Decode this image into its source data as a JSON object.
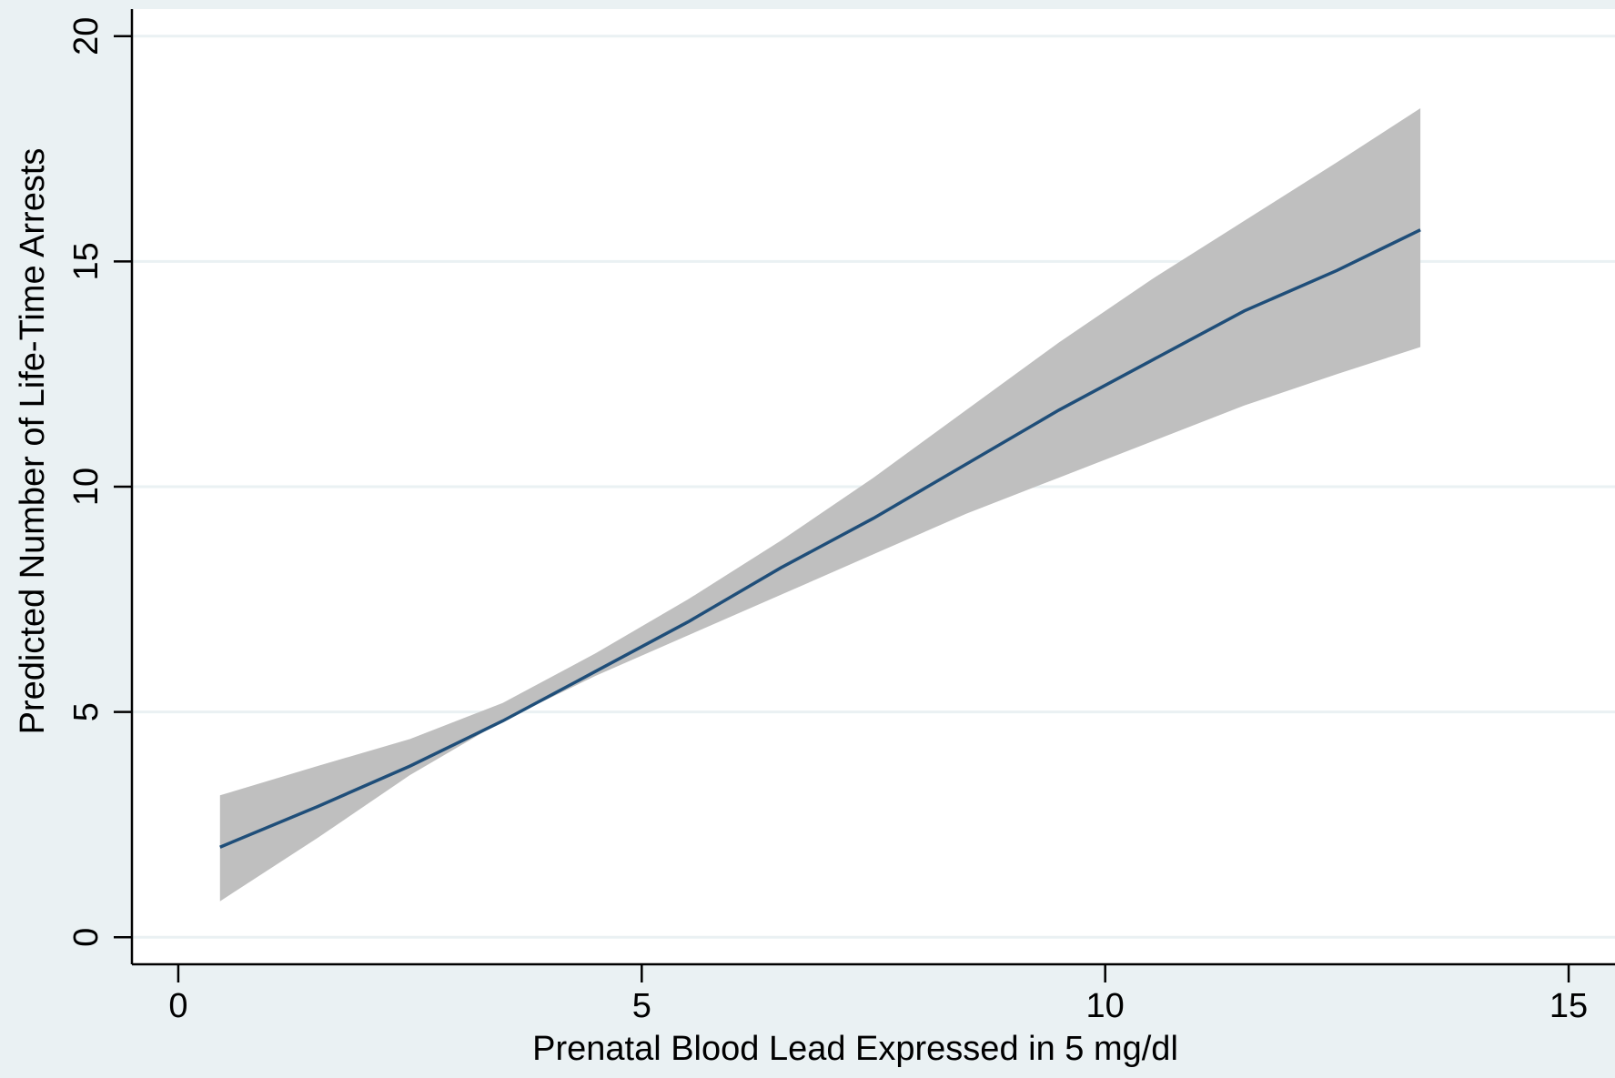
{
  "chart_data": {
    "type": "line",
    "title": "",
    "xlabel": "Prenatal Blood Lead Expressed in 5 mg/dl",
    "ylabel": "Predicted Number of Life-Time Arrests",
    "xlim": [
      -0.5,
      15.5
    ],
    "ylim": [
      -0.6,
      20.6
    ],
    "xticks": [
      0,
      5,
      10,
      15
    ],
    "yticks": [
      0,
      5,
      10,
      15,
      20
    ],
    "xtick_labels": [
      "0",
      "5",
      "10",
      "15"
    ],
    "ytick_labels": [
      "0",
      "5",
      "10",
      "15",
      "20"
    ],
    "grid": "horizontal",
    "legend": "none",
    "colors": {
      "line": "#1f4e79",
      "band": "#bfbfbf",
      "plot_background": "#ffffff",
      "outer_background": "#eaf1f3",
      "grid": "#eaf1f3"
    },
    "series": [
      {
        "type": "line",
        "x": [
          0.45,
          1.5,
          2.5,
          3.5,
          4.5,
          5.5,
          6.5,
          7.5,
          8.5,
          9.5,
          10.5,
          11.5,
          12.5,
          13.4
        ],
        "y": [
          2.0,
          2.9,
          3.8,
          4.8,
          5.9,
          7.0,
          8.2,
          9.3,
          10.5,
          11.7,
          12.8,
          13.9,
          14.8,
          15.7
        ]
      },
      {
        "type": "band",
        "x": [
          0.45,
          1.5,
          2.5,
          3.5,
          4.5,
          5.5,
          6.5,
          7.5,
          8.5,
          9.5,
          10.5,
          11.5,
          12.5,
          13.4
        ],
        "lower": [
          0.8,
          2.2,
          3.6,
          4.8,
          5.8,
          6.7,
          7.6,
          8.5,
          9.4,
          10.2,
          11.0,
          11.8,
          12.5,
          13.1
        ],
        "upper": [
          3.15,
          3.8,
          4.4,
          5.2,
          6.3,
          7.5,
          8.8,
          10.2,
          11.7,
          13.2,
          14.6,
          15.9,
          17.2,
          18.4
        ]
      }
    ]
  }
}
